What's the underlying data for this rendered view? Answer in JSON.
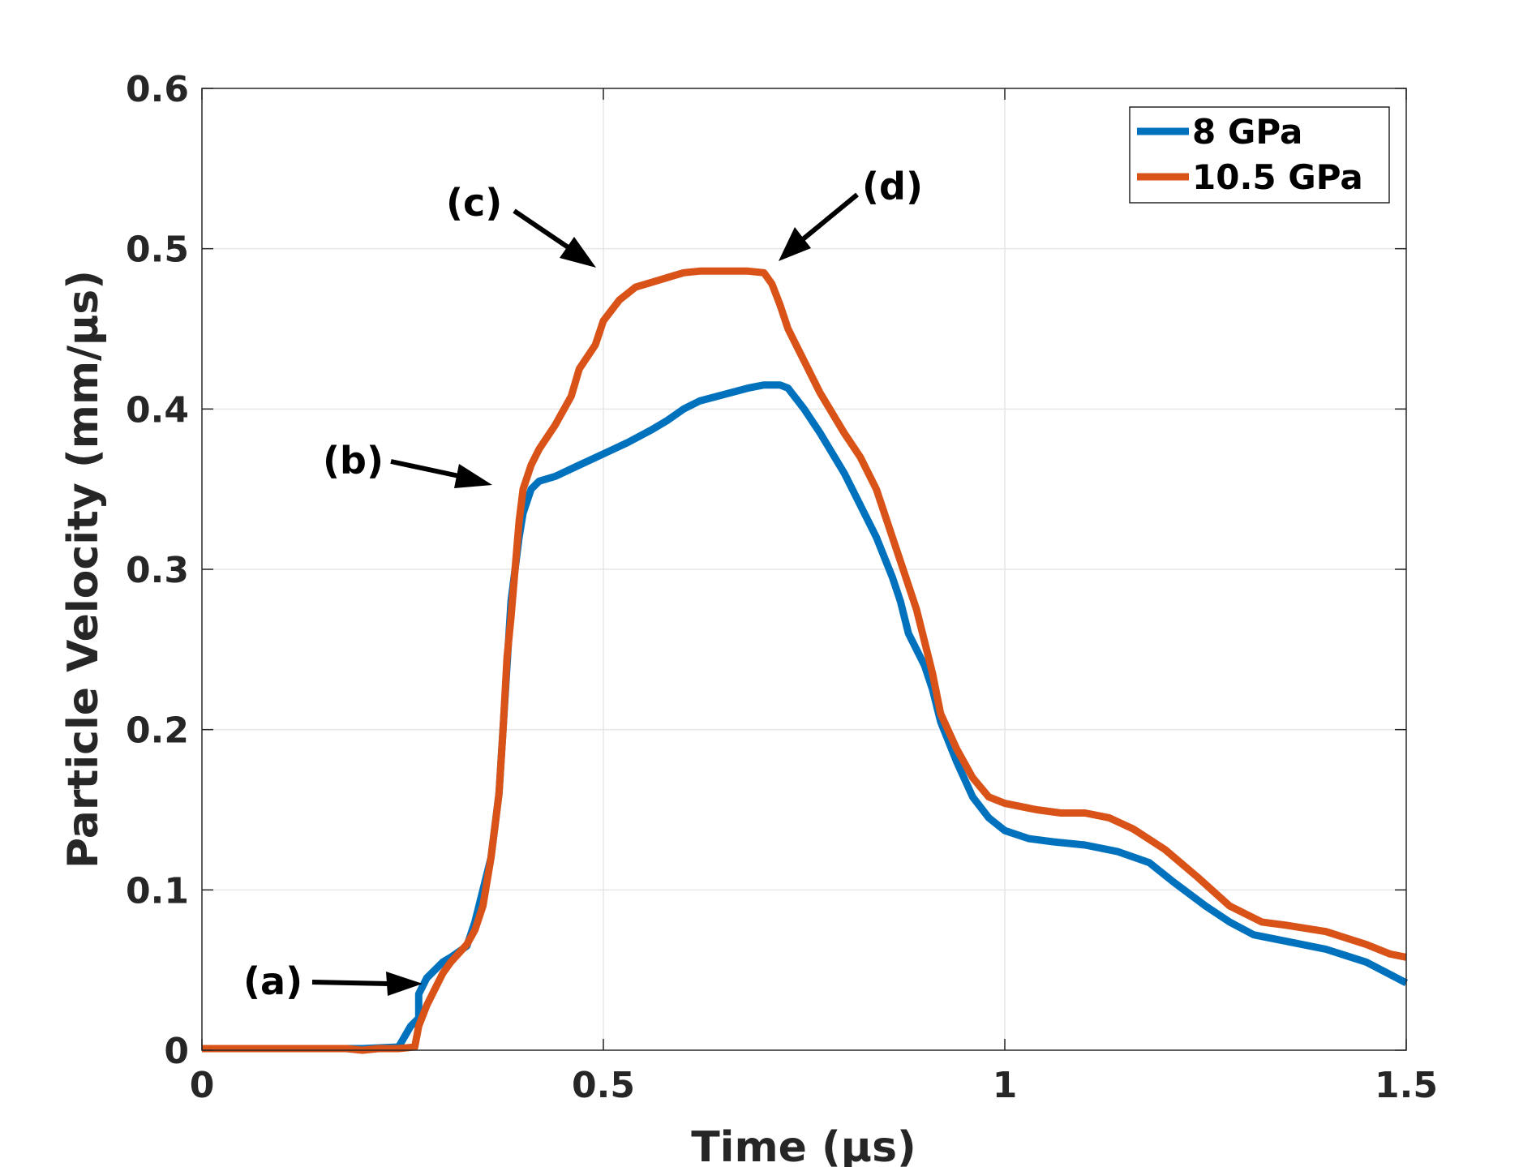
{
  "chart_data": {
    "type": "line",
    "title": "",
    "xlabel": "Time (μs)",
    "ylabel": "Particle Velocity (mm/μs)",
    "xlim": [
      0,
      1.5
    ],
    "ylim": [
      0,
      0.6
    ],
    "xticks": [
      0,
      0.5,
      1,
      1.5
    ],
    "xtick_labels": [
      "0",
      "0.5",
      "1",
      "1.5"
    ],
    "yticks": [
      0,
      0.1,
      0.2,
      0.3,
      0.4,
      0.5,
      0.6
    ],
    "ytick_labels": [
      "0",
      "0.1",
      "0.2",
      "0.3",
      "0.4",
      "0.5",
      "0.6"
    ],
    "grid": true,
    "legend_position": "top-right",
    "series": [
      {
        "name": "8 GPa",
        "color": "#0072BD",
        "points": [
          [
            0,
            0.001
          ],
          [
            0.05,
            0.001
          ],
          [
            0.1,
            0.001
          ],
          [
            0.15,
            0.001
          ],
          [
            0.2,
            0.001
          ],
          [
            0.245,
            0.002
          ],
          [
            0.26,
            0.015
          ],
          [
            0.27,
            0.02
          ],
          [
            0.27,
            0.035
          ],
          [
            0.28,
            0.045
          ],
          [
            0.3,
            0.055
          ],
          [
            0.31,
            0.058
          ],
          [
            0.33,
            0.065
          ],
          [
            0.34,
            0.08
          ],
          [
            0.35,
            0.1
          ],
          [
            0.36,
            0.12
          ],
          [
            0.37,
            0.16
          ],
          [
            0.38,
            0.24
          ],
          [
            0.385,
            0.28
          ],
          [
            0.39,
            0.3
          ],
          [
            0.395,
            0.32
          ],
          [
            0.4,
            0.335
          ],
          [
            0.41,
            0.35
          ],
          [
            0.42,
            0.355
          ],
          [
            0.44,
            0.358
          ],
          [
            0.47,
            0.365
          ],
          [
            0.5,
            0.372
          ],
          [
            0.53,
            0.379
          ],
          [
            0.56,
            0.387
          ],
          [
            0.58,
            0.393
          ],
          [
            0.6,
            0.4
          ],
          [
            0.62,
            0.405
          ],
          [
            0.65,
            0.409
          ],
          [
            0.68,
            0.413
          ],
          [
            0.7,
            0.415
          ],
          [
            0.72,
            0.415
          ],
          [
            0.73,
            0.413
          ],
          [
            0.75,
            0.4
          ],
          [
            0.77,
            0.385
          ],
          [
            0.8,
            0.36
          ],
          [
            0.82,
            0.34
          ],
          [
            0.84,
            0.32
          ],
          [
            0.86,
            0.295
          ],
          [
            0.87,
            0.28
          ],
          [
            0.88,
            0.26
          ],
          [
            0.9,
            0.24
          ],
          [
            0.91,
            0.225
          ],
          [
            0.92,
            0.205
          ],
          [
            0.94,
            0.18
          ],
          [
            0.96,
            0.158
          ],
          [
            0.98,
            0.145
          ],
          [
            1.0,
            0.137
          ],
          [
            1.03,
            0.132
          ],
          [
            1.06,
            0.13
          ],
          [
            1.1,
            0.128
          ],
          [
            1.14,
            0.124
          ],
          [
            1.18,
            0.117
          ],
          [
            1.21,
            0.105
          ],
          [
            1.25,
            0.09
          ],
          [
            1.28,
            0.08
          ],
          [
            1.31,
            0.072
          ],
          [
            1.35,
            0.068
          ],
          [
            1.4,
            0.063
          ],
          [
            1.45,
            0.055
          ],
          [
            1.5,
            0.042
          ]
        ]
      },
      {
        "name": "10.5 GPa",
        "color": "#D95319",
        "points": [
          [
            0,
            0.001
          ],
          [
            0.05,
            0.001
          ],
          [
            0.1,
            0.001
          ],
          [
            0.15,
            0.001
          ],
          [
            0.18,
            0.001
          ],
          [
            0.2,
            0.0
          ],
          [
            0.22,
            0.001
          ],
          [
            0.245,
            0.001
          ],
          [
            0.265,
            0.002
          ],
          [
            0.27,
            0.015
          ],
          [
            0.28,
            0.028
          ],
          [
            0.29,
            0.038
          ],
          [
            0.3,
            0.048
          ],
          [
            0.31,
            0.055
          ],
          [
            0.33,
            0.066
          ],
          [
            0.34,
            0.075
          ],
          [
            0.35,
            0.09
          ],
          [
            0.36,
            0.12
          ],
          [
            0.37,
            0.16
          ],
          [
            0.375,
            0.2
          ],
          [
            0.38,
            0.245
          ],
          [
            0.385,
            0.27
          ],
          [
            0.39,
            0.3
          ],
          [
            0.395,
            0.33
          ],
          [
            0.4,
            0.35
          ],
          [
            0.41,
            0.365
          ],
          [
            0.42,
            0.375
          ],
          [
            0.44,
            0.39
          ],
          [
            0.46,
            0.408
          ],
          [
            0.47,
            0.425
          ],
          [
            0.49,
            0.44
          ],
          [
            0.5,
            0.455
          ],
          [
            0.52,
            0.468
          ],
          [
            0.54,
            0.476
          ],
          [
            0.56,
            0.479
          ],
          [
            0.58,
            0.482
          ],
          [
            0.6,
            0.485
          ],
          [
            0.62,
            0.486
          ],
          [
            0.65,
            0.486
          ],
          [
            0.68,
            0.486
          ],
          [
            0.7,
            0.485
          ],
          [
            0.71,
            0.478
          ],
          [
            0.72,
            0.465
          ],
          [
            0.73,
            0.45
          ],
          [
            0.74,
            0.44
          ],
          [
            0.75,
            0.43
          ],
          [
            0.77,
            0.41
          ],
          [
            0.8,
            0.385
          ],
          [
            0.82,
            0.37
          ],
          [
            0.84,
            0.35
          ],
          [
            0.86,
            0.32
          ],
          [
            0.87,
            0.305
          ],
          [
            0.89,
            0.275
          ],
          [
            0.9,
            0.255
          ],
          [
            0.91,
            0.235
          ],
          [
            0.92,
            0.21
          ],
          [
            0.94,
            0.188
          ],
          [
            0.96,
            0.17
          ],
          [
            0.98,
            0.158
          ],
          [
            1.0,
            0.154
          ],
          [
            1.04,
            0.15
          ],
          [
            1.07,
            0.148
          ],
          [
            1.1,
            0.148
          ],
          [
            1.13,
            0.145
          ],
          [
            1.16,
            0.138
          ],
          [
            1.2,
            0.125
          ],
          [
            1.24,
            0.108
          ],
          [
            1.28,
            0.09
          ],
          [
            1.32,
            0.08
          ],
          [
            1.35,
            0.078
          ],
          [
            1.4,
            0.074
          ],
          [
            1.45,
            0.066
          ],
          [
            1.48,
            0.06
          ],
          [
            1.5,
            0.058
          ]
        ]
      }
    ],
    "annotations": [
      {
        "label": "(a)",
        "target": [
          0.27,
          0.042
        ]
      },
      {
        "label": "(b)",
        "target": [
          0.365,
          0.353
        ]
      },
      {
        "label": "(c)",
        "target": [
          0.49,
          0.49
        ]
      },
      {
        "label": "(d)",
        "target": [
          0.725,
          0.49
        ]
      }
    ]
  }
}
